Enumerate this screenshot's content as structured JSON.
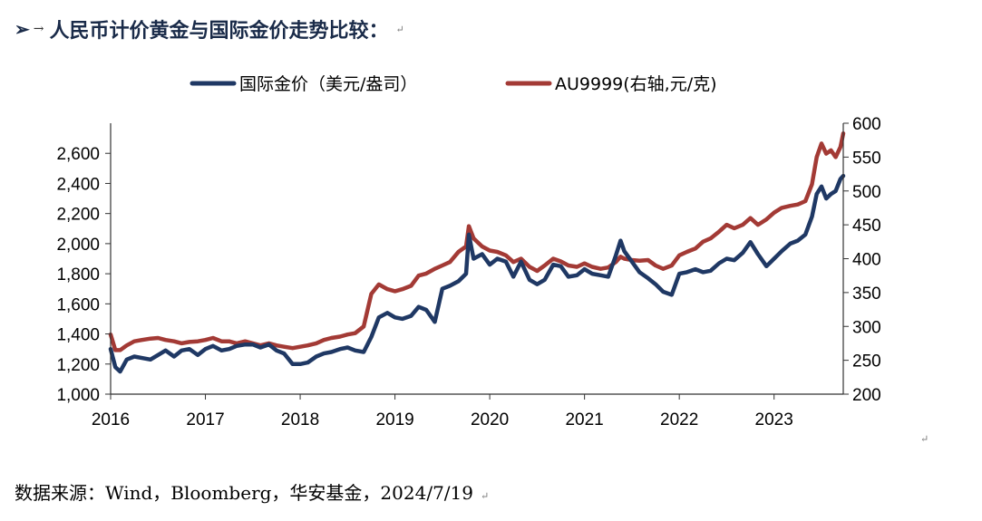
{
  "heading": {
    "bullet": "➢",
    "arrow": "→",
    "title": "人民币计价黄金与国际金价走势比较：",
    "para_mark": "↵"
  },
  "source_note": {
    "text": "数据来源：Wind，Bloomberg，华安基金，2024/7/19",
    "para_mark": "↵"
  },
  "trailing_para_mark": "↵",
  "colors": {
    "series_left": "#1f3864",
    "series_right": "#a33a35",
    "axis": "#333333"
  },
  "chart_data": {
    "type": "line",
    "legend": [
      {
        "name": "国际金价（美元/盎司）"
      },
      {
        "name": "AU9999(右轴,元/克)"
      }
    ],
    "x_ticks": [
      "2016",
      "2017",
      "2018",
      "2019",
      "2020",
      "2021",
      "2022",
      "2023"
    ],
    "xlim": [
      2016.0,
      2023.73
    ],
    "y_left": {
      "lim": [
        1000,
        2800
      ],
      "ticks": [
        "1,000",
        "1,200",
        "1,400",
        "1,600",
        "1,800",
        "2,000",
        "2,200",
        "2,400",
        "2,600"
      ]
    },
    "y_right": {
      "lim": [
        200,
        600
      ],
      "ticks": [
        "200",
        "250",
        "300",
        "350",
        "400",
        "450",
        "500",
        "550",
        "600"
      ]
    },
    "series": [
      {
        "name": "国际金价（美元/盎司）",
        "axis": "left",
        "points": [
          [
            2016.0,
            1300
          ],
          [
            2016.05,
            1180
          ],
          [
            2016.1,
            1150
          ],
          [
            2016.17,
            1230
          ],
          [
            2016.25,
            1250
          ],
          [
            2016.33,
            1240
          ],
          [
            2016.42,
            1230
          ],
          [
            2016.5,
            1260
          ],
          [
            2016.58,
            1290
          ],
          [
            2016.67,
            1250
          ],
          [
            2016.75,
            1290
          ],
          [
            2016.83,
            1300
          ],
          [
            2016.92,
            1260
          ],
          [
            2017.0,
            1300
          ],
          [
            2017.08,
            1320
          ],
          [
            2017.17,
            1290
          ],
          [
            2017.25,
            1300
          ],
          [
            2017.33,
            1320
          ],
          [
            2017.42,
            1330
          ],
          [
            2017.5,
            1330
          ],
          [
            2017.58,
            1310
          ],
          [
            2017.67,
            1330
          ],
          [
            2017.75,
            1290
          ],
          [
            2017.83,
            1270
          ],
          [
            2017.92,
            1200
          ],
          [
            2018.0,
            1200
          ],
          [
            2018.08,
            1210
          ],
          [
            2018.17,
            1250
          ],
          [
            2018.25,
            1270
          ],
          [
            2018.33,
            1280
          ],
          [
            2018.42,
            1300
          ],
          [
            2018.5,
            1310
          ],
          [
            2018.58,
            1290
          ],
          [
            2018.67,
            1280
          ],
          [
            2018.75,
            1380
          ],
          [
            2018.83,
            1510
          ],
          [
            2018.92,
            1540
          ],
          [
            2019.0,
            1510
          ],
          [
            2019.08,
            1500
          ],
          [
            2019.17,
            1520
          ],
          [
            2019.25,
            1580
          ],
          [
            2019.33,
            1560
          ],
          [
            2019.42,
            1480
          ],
          [
            2019.5,
            1700
          ],
          [
            2019.58,
            1720
          ],
          [
            2019.67,
            1750
          ],
          [
            2019.75,
            1800
          ],
          [
            2019.78,
            2060
          ],
          [
            2019.83,
            1900
          ],
          [
            2019.92,
            1930
          ],
          [
            2020.0,
            1860
          ],
          [
            2020.08,
            1900
          ],
          [
            2020.17,
            1880
          ],
          [
            2020.25,
            1780
          ],
          [
            2020.33,
            1880
          ],
          [
            2020.42,
            1760
          ],
          [
            2020.5,
            1730
          ],
          [
            2020.58,
            1760
          ],
          [
            2020.67,
            1860
          ],
          [
            2020.75,
            1850
          ],
          [
            2020.83,
            1780
          ],
          [
            2020.92,
            1790
          ],
          [
            2021.0,
            1830
          ],
          [
            2021.08,
            1800
          ],
          [
            2021.17,
            1790
          ],
          [
            2021.25,
            1780
          ],
          [
            2021.33,
            1920
          ],
          [
            2021.38,
            2020
          ],
          [
            2021.42,
            1950
          ],
          [
            2021.5,
            1880
          ],
          [
            2021.58,
            1810
          ],
          [
            2021.67,
            1770
          ],
          [
            2021.75,
            1730
          ],
          [
            2021.83,
            1680
          ],
          [
            2021.92,
            1660
          ],
          [
            2022.0,
            1800
          ],
          [
            2022.08,
            1810
          ],
          [
            2022.17,
            1830
          ],
          [
            2022.25,
            1810
          ],
          [
            2022.33,
            1820
          ],
          [
            2022.42,
            1870
          ],
          [
            2022.5,
            1900
          ],
          [
            2022.58,
            1890
          ],
          [
            2022.67,
            1940
          ],
          [
            2022.75,
            2010
          ],
          [
            2022.83,
            1930
          ],
          [
            2022.92,
            1850
          ],
          [
            2023.0,
            1900
          ],
          [
            2023.08,
            1950
          ],
          [
            2023.17,
            2000
          ],
          [
            2023.25,
            2020
          ],
          [
            2023.33,
            2060
          ],
          [
            2023.4,
            2180
          ],
          [
            2023.45,
            2330
          ],
          [
            2023.5,
            2380
          ],
          [
            2023.55,
            2300
          ],
          [
            2023.6,
            2330
          ],
          [
            2023.65,
            2350
          ],
          [
            2023.7,
            2430
          ],
          [
            2023.73,
            2450
          ]
        ]
      },
      {
        "name": "AU9999(右轴,元/克)",
        "axis": "right",
        "points": [
          [
            2016.0,
            288
          ],
          [
            2016.05,
            265
          ],
          [
            2016.1,
            265
          ],
          [
            2016.17,
            272
          ],
          [
            2016.25,
            278
          ],
          [
            2016.33,
            280
          ],
          [
            2016.42,
            282
          ],
          [
            2016.5,
            283
          ],
          [
            2016.58,
            280
          ],
          [
            2016.67,
            278
          ],
          [
            2016.75,
            275
          ],
          [
            2016.83,
            277
          ],
          [
            2016.92,
            278
          ],
          [
            2017.0,
            280
          ],
          [
            2017.08,
            283
          ],
          [
            2017.17,
            278
          ],
          [
            2017.25,
            278
          ],
          [
            2017.33,
            275
          ],
          [
            2017.42,
            278
          ],
          [
            2017.5,
            275
          ],
          [
            2017.58,
            272
          ],
          [
            2017.67,
            275
          ],
          [
            2017.75,
            272
          ],
          [
            2017.83,
            270
          ],
          [
            2017.92,
            268
          ],
          [
            2018.0,
            270
          ],
          [
            2018.08,
            272
          ],
          [
            2018.17,
            275
          ],
          [
            2018.25,
            280
          ],
          [
            2018.33,
            283
          ],
          [
            2018.42,
            285
          ],
          [
            2018.5,
            288
          ],
          [
            2018.58,
            290
          ],
          [
            2018.67,
            300
          ],
          [
            2018.75,
            348
          ],
          [
            2018.83,
            362
          ],
          [
            2018.92,
            355
          ],
          [
            2019.0,
            352
          ],
          [
            2019.08,
            355
          ],
          [
            2019.17,
            360
          ],
          [
            2019.25,
            375
          ],
          [
            2019.33,
            378
          ],
          [
            2019.42,
            385
          ],
          [
            2019.5,
            390
          ],
          [
            2019.58,
            395
          ],
          [
            2019.67,
            410
          ],
          [
            2019.75,
            418
          ],
          [
            2019.78,
            448
          ],
          [
            2019.83,
            430
          ],
          [
            2019.92,
            418
          ],
          [
            2020.0,
            412
          ],
          [
            2020.08,
            410
          ],
          [
            2020.17,
            405
          ],
          [
            2020.25,
            395
          ],
          [
            2020.33,
            400
          ],
          [
            2020.42,
            388
          ],
          [
            2020.5,
            382
          ],
          [
            2020.58,
            390
          ],
          [
            2020.67,
            400
          ],
          [
            2020.75,
            396
          ],
          [
            2020.83,
            390
          ],
          [
            2020.92,
            388
          ],
          [
            2021.0,
            393
          ],
          [
            2021.08,
            388
          ],
          [
            2021.17,
            385
          ],
          [
            2021.25,
            387
          ],
          [
            2021.33,
            395
          ],
          [
            2021.38,
            403
          ],
          [
            2021.42,
            400
          ],
          [
            2021.5,
            398
          ],
          [
            2021.58,
            397
          ],
          [
            2021.67,
            398
          ],
          [
            2021.75,
            390
          ],
          [
            2021.83,
            385
          ],
          [
            2021.92,
            390
          ],
          [
            2022.0,
            405
          ],
          [
            2022.08,
            410
          ],
          [
            2022.17,
            415
          ],
          [
            2022.25,
            425
          ],
          [
            2022.33,
            430
          ],
          [
            2022.42,
            440
          ],
          [
            2022.5,
            450
          ],
          [
            2022.58,
            445
          ],
          [
            2022.67,
            450
          ],
          [
            2022.75,
            460
          ],
          [
            2022.83,
            450
          ],
          [
            2022.92,
            458
          ],
          [
            2023.0,
            468
          ],
          [
            2023.08,
            475
          ],
          [
            2023.17,
            478
          ],
          [
            2023.25,
            480
          ],
          [
            2023.33,
            485
          ],
          [
            2023.4,
            510
          ],
          [
            2023.45,
            550
          ],
          [
            2023.5,
            570
          ],
          [
            2023.55,
            555
          ],
          [
            2023.6,
            560
          ],
          [
            2023.65,
            550
          ],
          [
            2023.7,
            565
          ],
          [
            2023.73,
            585
          ]
        ]
      }
    ]
  }
}
